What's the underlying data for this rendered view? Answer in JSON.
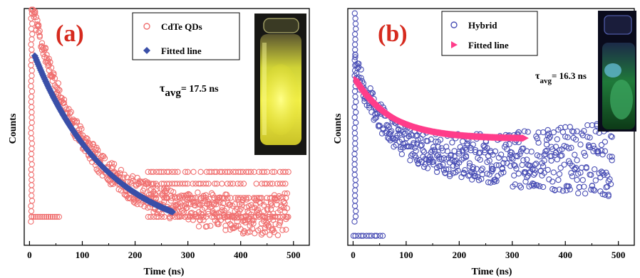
{
  "colors": {
    "cdte_marker": "#f07070",
    "cdte_fit": "#3a4fa8",
    "hybrid_marker": "#4a4fb5",
    "hybrid_fit": "#ff3d8a",
    "label_a": "#d62a1e",
    "label_b": "#d62a1e"
  },
  "chart_data": [
    {
      "type": "scatter",
      "panel_label": "(a)",
      "xlabel": "Time (ns)",
      "ylabel": "Counts",
      "xlim": [
        -10,
        530
      ],
      "ylim": [
        0,
        1
      ],
      "xticks": [
        0,
        100,
        200,
        300,
        400,
        500
      ],
      "yticks_visible": false,
      "grid": false,
      "legend_position": "top-right",
      "annotation": {
        "symbol": "τ",
        "subscript": "avg",
        "text": "= 17.5 ns"
      },
      "inset_image": "photo of a vial of CdTe QD solution glowing yellow under UV light",
      "series": [
        {
          "name": "CdTe QDs",
          "marker": "open-circle",
          "decay": {
            "t0": 4,
            "x_end": 490,
            "peak": 0.995,
            "floor": 0.12,
            "tau": 95,
            "amp": 0.9,
            "noise": 0.03,
            "background_bands": [
              0.12,
              0.2,
              0.26,
              0.31
            ],
            "band_start": 220
          }
        },
        {
          "name": "Fitted line",
          "marker": "filled-diamond",
          "fit": {
            "x_start": 10,
            "x_end": 272,
            "y_start": 0.8,
            "tau": 140,
            "amp": 0.78,
            "floor": 0.02
          }
        }
      ]
    },
    {
      "type": "scatter",
      "panel_label": "(b)",
      "xlabel": "Time (ns)",
      "ylabel": "Counts",
      "xlim": [
        -10,
        530
      ],
      "ylim": [
        0,
        1
      ],
      "xticks": [
        0,
        100,
        200,
        300,
        400,
        500
      ],
      "yticks_visible": false,
      "grid": false,
      "legend_position": "top-left",
      "annotation": {
        "symbol": "τ",
        "subscript": "avg",
        "text": "= 16.3 ns"
      },
      "inset_image": "photo of a vial of the hybrid solution glowing green under UV light",
      "series": [
        {
          "name": "Hybrid",
          "marker": "open-circle",
          "decay": {
            "t0": 4,
            "x_end": 490,
            "peak": 0.995,
            "floor": 0.36,
            "tau": 60,
            "amp": 0.4,
            "noise": 0.05,
            "background_bands": [
              0.04
            ],
            "band_start": 0
          }
        },
        {
          "name": "Fitted line",
          "marker": "filled-triangle",
          "fit": {
            "x_start": 6,
            "x_end": 325,
            "y_start": 0.7,
            "tau": 70,
            "amp": 0.25,
            "floor": 0.39
          }
        }
      ]
    }
  ]
}
